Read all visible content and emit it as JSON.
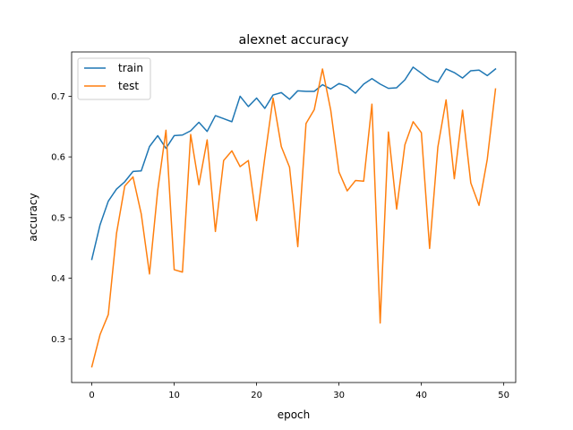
{
  "chart_data": {
    "type": "line",
    "title": "alexnet accuracy",
    "xlabel": "epoch",
    "ylabel": "accuracy",
    "xlim": [
      -2.45,
      51.45
    ],
    "ylim": [
      0.228,
      0.773
    ],
    "xticks": [
      0,
      10,
      20,
      30,
      40,
      50
    ],
    "yticks": [
      0.3,
      0.4,
      0.5,
      0.6,
      0.7
    ],
    "grid": false,
    "legend_position": "top-left",
    "x": [
      0,
      1,
      2,
      3,
      4,
      5,
      6,
      7,
      8,
      9,
      10,
      11,
      12,
      13,
      14,
      15,
      16,
      17,
      18,
      19,
      20,
      21,
      22,
      23,
      24,
      25,
      26,
      27,
      28,
      29,
      30,
      31,
      32,
      33,
      34,
      35,
      36,
      37,
      38,
      39,
      40,
      41,
      42,
      43,
      44,
      45,
      46,
      47,
      48,
      49
    ],
    "series": [
      {
        "name": "train",
        "color": "#1f77b4",
        "values": [
          0.431,
          0.488,
          0.527,
          0.547,
          0.559,
          0.576,
          0.577,
          0.617,
          0.635,
          0.614,
          0.635,
          0.636,
          0.643,
          0.657,
          0.642,
          0.668,
          0.663,
          0.658,
          0.7,
          0.683,
          0.697,
          0.68,
          0.702,
          0.706,
          0.695,
          0.709,
          0.708,
          0.708,
          0.719,
          0.712,
          0.721,
          0.716,
          0.705,
          0.72,
          0.729,
          0.72,
          0.713,
          0.714,
          0.727,
          0.748,
          0.738,
          0.728,
          0.723,
          0.745,
          0.739,
          0.73,
          0.742,
          0.743,
          0.734,
          0.745
        ]
      },
      {
        "name": "test",
        "color": "#ff7f0e",
        "values": [
          0.254,
          0.307,
          0.34,
          0.474,
          0.552,
          0.567,
          0.506,
          0.407,
          0.545,
          0.644,
          0.414,
          0.41,
          0.637,
          0.554,
          0.628,
          0.477,
          0.594,
          0.61,
          0.584,
          0.594,
          0.495,
          0.599,
          0.697,
          0.617,
          0.583,
          0.452,
          0.655,
          0.678,
          0.745,
          0.677,
          0.575,
          0.544,
          0.561,
          0.56,
          0.687,
          0.326,
          0.641,
          0.514,
          0.62,
          0.658,
          0.64,
          0.449,
          0.616,
          0.694,
          0.564,
          0.677,
          0.557,
          0.52,
          0.596,
          0.712
        ]
      }
    ]
  }
}
